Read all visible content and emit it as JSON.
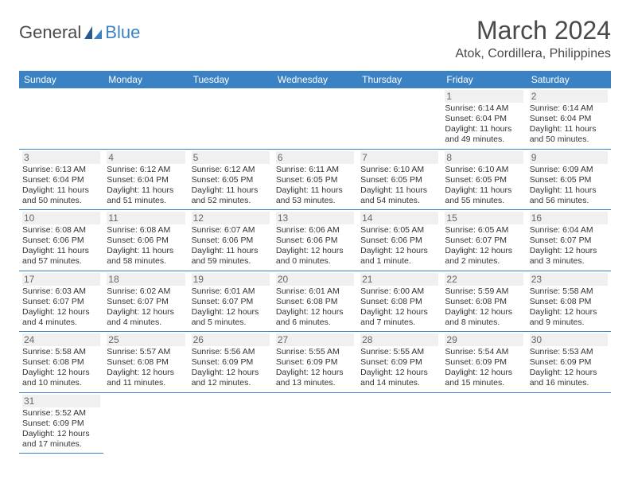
{
  "logo": {
    "part1": "General",
    "part2": "Blue"
  },
  "title": "March 2024",
  "location": "Atok, Cordillera, Philippines",
  "colors": {
    "header_bg": "#3b82c4",
    "header_text": "#ffffff",
    "border": "#3b82c4",
    "text": "#333333",
    "daynum_bg": "#f0f0f0"
  },
  "weekdays": [
    "Sunday",
    "Monday",
    "Tuesday",
    "Wednesday",
    "Thursday",
    "Friday",
    "Saturday"
  ],
  "weeks": [
    [
      null,
      null,
      null,
      null,
      null,
      {
        "day": "1",
        "sunrise": "Sunrise: 6:14 AM",
        "sunset": "Sunset: 6:04 PM",
        "daylight1": "Daylight: 11 hours",
        "daylight2": "and 49 minutes."
      },
      {
        "day": "2",
        "sunrise": "Sunrise: 6:14 AM",
        "sunset": "Sunset: 6:04 PM",
        "daylight1": "Daylight: 11 hours",
        "daylight2": "and 50 minutes."
      }
    ],
    [
      {
        "day": "3",
        "sunrise": "Sunrise: 6:13 AM",
        "sunset": "Sunset: 6:04 PM",
        "daylight1": "Daylight: 11 hours",
        "daylight2": "and 50 minutes."
      },
      {
        "day": "4",
        "sunrise": "Sunrise: 6:12 AM",
        "sunset": "Sunset: 6:04 PM",
        "daylight1": "Daylight: 11 hours",
        "daylight2": "and 51 minutes."
      },
      {
        "day": "5",
        "sunrise": "Sunrise: 6:12 AM",
        "sunset": "Sunset: 6:05 PM",
        "daylight1": "Daylight: 11 hours",
        "daylight2": "and 52 minutes."
      },
      {
        "day": "6",
        "sunrise": "Sunrise: 6:11 AM",
        "sunset": "Sunset: 6:05 PM",
        "daylight1": "Daylight: 11 hours",
        "daylight2": "and 53 minutes."
      },
      {
        "day": "7",
        "sunrise": "Sunrise: 6:10 AM",
        "sunset": "Sunset: 6:05 PM",
        "daylight1": "Daylight: 11 hours",
        "daylight2": "and 54 minutes."
      },
      {
        "day": "8",
        "sunrise": "Sunrise: 6:10 AM",
        "sunset": "Sunset: 6:05 PM",
        "daylight1": "Daylight: 11 hours",
        "daylight2": "and 55 minutes."
      },
      {
        "day": "9",
        "sunrise": "Sunrise: 6:09 AM",
        "sunset": "Sunset: 6:05 PM",
        "daylight1": "Daylight: 11 hours",
        "daylight2": "and 56 minutes."
      }
    ],
    [
      {
        "day": "10",
        "sunrise": "Sunrise: 6:08 AM",
        "sunset": "Sunset: 6:06 PM",
        "daylight1": "Daylight: 11 hours",
        "daylight2": "and 57 minutes."
      },
      {
        "day": "11",
        "sunrise": "Sunrise: 6:08 AM",
        "sunset": "Sunset: 6:06 PM",
        "daylight1": "Daylight: 11 hours",
        "daylight2": "and 58 minutes."
      },
      {
        "day": "12",
        "sunrise": "Sunrise: 6:07 AM",
        "sunset": "Sunset: 6:06 PM",
        "daylight1": "Daylight: 11 hours",
        "daylight2": "and 59 minutes."
      },
      {
        "day": "13",
        "sunrise": "Sunrise: 6:06 AM",
        "sunset": "Sunset: 6:06 PM",
        "daylight1": "Daylight: 12 hours",
        "daylight2": "and 0 minutes."
      },
      {
        "day": "14",
        "sunrise": "Sunrise: 6:05 AM",
        "sunset": "Sunset: 6:06 PM",
        "daylight1": "Daylight: 12 hours",
        "daylight2": "and 1 minute."
      },
      {
        "day": "15",
        "sunrise": "Sunrise: 6:05 AM",
        "sunset": "Sunset: 6:07 PM",
        "daylight1": "Daylight: 12 hours",
        "daylight2": "and 2 minutes."
      },
      {
        "day": "16",
        "sunrise": "Sunrise: 6:04 AM",
        "sunset": "Sunset: 6:07 PM",
        "daylight1": "Daylight: 12 hours",
        "daylight2": "and 3 minutes."
      }
    ],
    [
      {
        "day": "17",
        "sunrise": "Sunrise: 6:03 AM",
        "sunset": "Sunset: 6:07 PM",
        "daylight1": "Daylight: 12 hours",
        "daylight2": "and 4 minutes."
      },
      {
        "day": "18",
        "sunrise": "Sunrise: 6:02 AM",
        "sunset": "Sunset: 6:07 PM",
        "daylight1": "Daylight: 12 hours",
        "daylight2": "and 4 minutes."
      },
      {
        "day": "19",
        "sunrise": "Sunrise: 6:01 AM",
        "sunset": "Sunset: 6:07 PM",
        "daylight1": "Daylight: 12 hours",
        "daylight2": "and 5 minutes."
      },
      {
        "day": "20",
        "sunrise": "Sunrise: 6:01 AM",
        "sunset": "Sunset: 6:08 PM",
        "daylight1": "Daylight: 12 hours",
        "daylight2": "and 6 minutes."
      },
      {
        "day": "21",
        "sunrise": "Sunrise: 6:00 AM",
        "sunset": "Sunset: 6:08 PM",
        "daylight1": "Daylight: 12 hours",
        "daylight2": "and 7 minutes."
      },
      {
        "day": "22",
        "sunrise": "Sunrise: 5:59 AM",
        "sunset": "Sunset: 6:08 PM",
        "daylight1": "Daylight: 12 hours",
        "daylight2": "and 8 minutes."
      },
      {
        "day": "23",
        "sunrise": "Sunrise: 5:58 AM",
        "sunset": "Sunset: 6:08 PM",
        "daylight1": "Daylight: 12 hours",
        "daylight2": "and 9 minutes."
      }
    ],
    [
      {
        "day": "24",
        "sunrise": "Sunrise: 5:58 AM",
        "sunset": "Sunset: 6:08 PM",
        "daylight1": "Daylight: 12 hours",
        "daylight2": "and 10 minutes."
      },
      {
        "day": "25",
        "sunrise": "Sunrise: 5:57 AM",
        "sunset": "Sunset: 6:08 PM",
        "daylight1": "Daylight: 12 hours",
        "daylight2": "and 11 minutes."
      },
      {
        "day": "26",
        "sunrise": "Sunrise: 5:56 AM",
        "sunset": "Sunset: 6:09 PM",
        "daylight1": "Daylight: 12 hours",
        "daylight2": "and 12 minutes."
      },
      {
        "day": "27",
        "sunrise": "Sunrise: 5:55 AM",
        "sunset": "Sunset: 6:09 PM",
        "daylight1": "Daylight: 12 hours",
        "daylight2": "and 13 minutes."
      },
      {
        "day": "28",
        "sunrise": "Sunrise: 5:55 AM",
        "sunset": "Sunset: 6:09 PM",
        "daylight1": "Daylight: 12 hours",
        "daylight2": "and 14 minutes."
      },
      {
        "day": "29",
        "sunrise": "Sunrise: 5:54 AM",
        "sunset": "Sunset: 6:09 PM",
        "daylight1": "Daylight: 12 hours",
        "daylight2": "and 15 minutes."
      },
      {
        "day": "30",
        "sunrise": "Sunrise: 5:53 AM",
        "sunset": "Sunset: 6:09 PM",
        "daylight1": "Daylight: 12 hours",
        "daylight2": "and 16 minutes."
      }
    ],
    [
      {
        "day": "31",
        "sunrise": "Sunrise: 5:52 AM",
        "sunset": "Sunset: 6:09 PM",
        "daylight1": "Daylight: 12 hours",
        "daylight2": "and 17 minutes."
      },
      null,
      null,
      null,
      null,
      null,
      null
    ]
  ]
}
